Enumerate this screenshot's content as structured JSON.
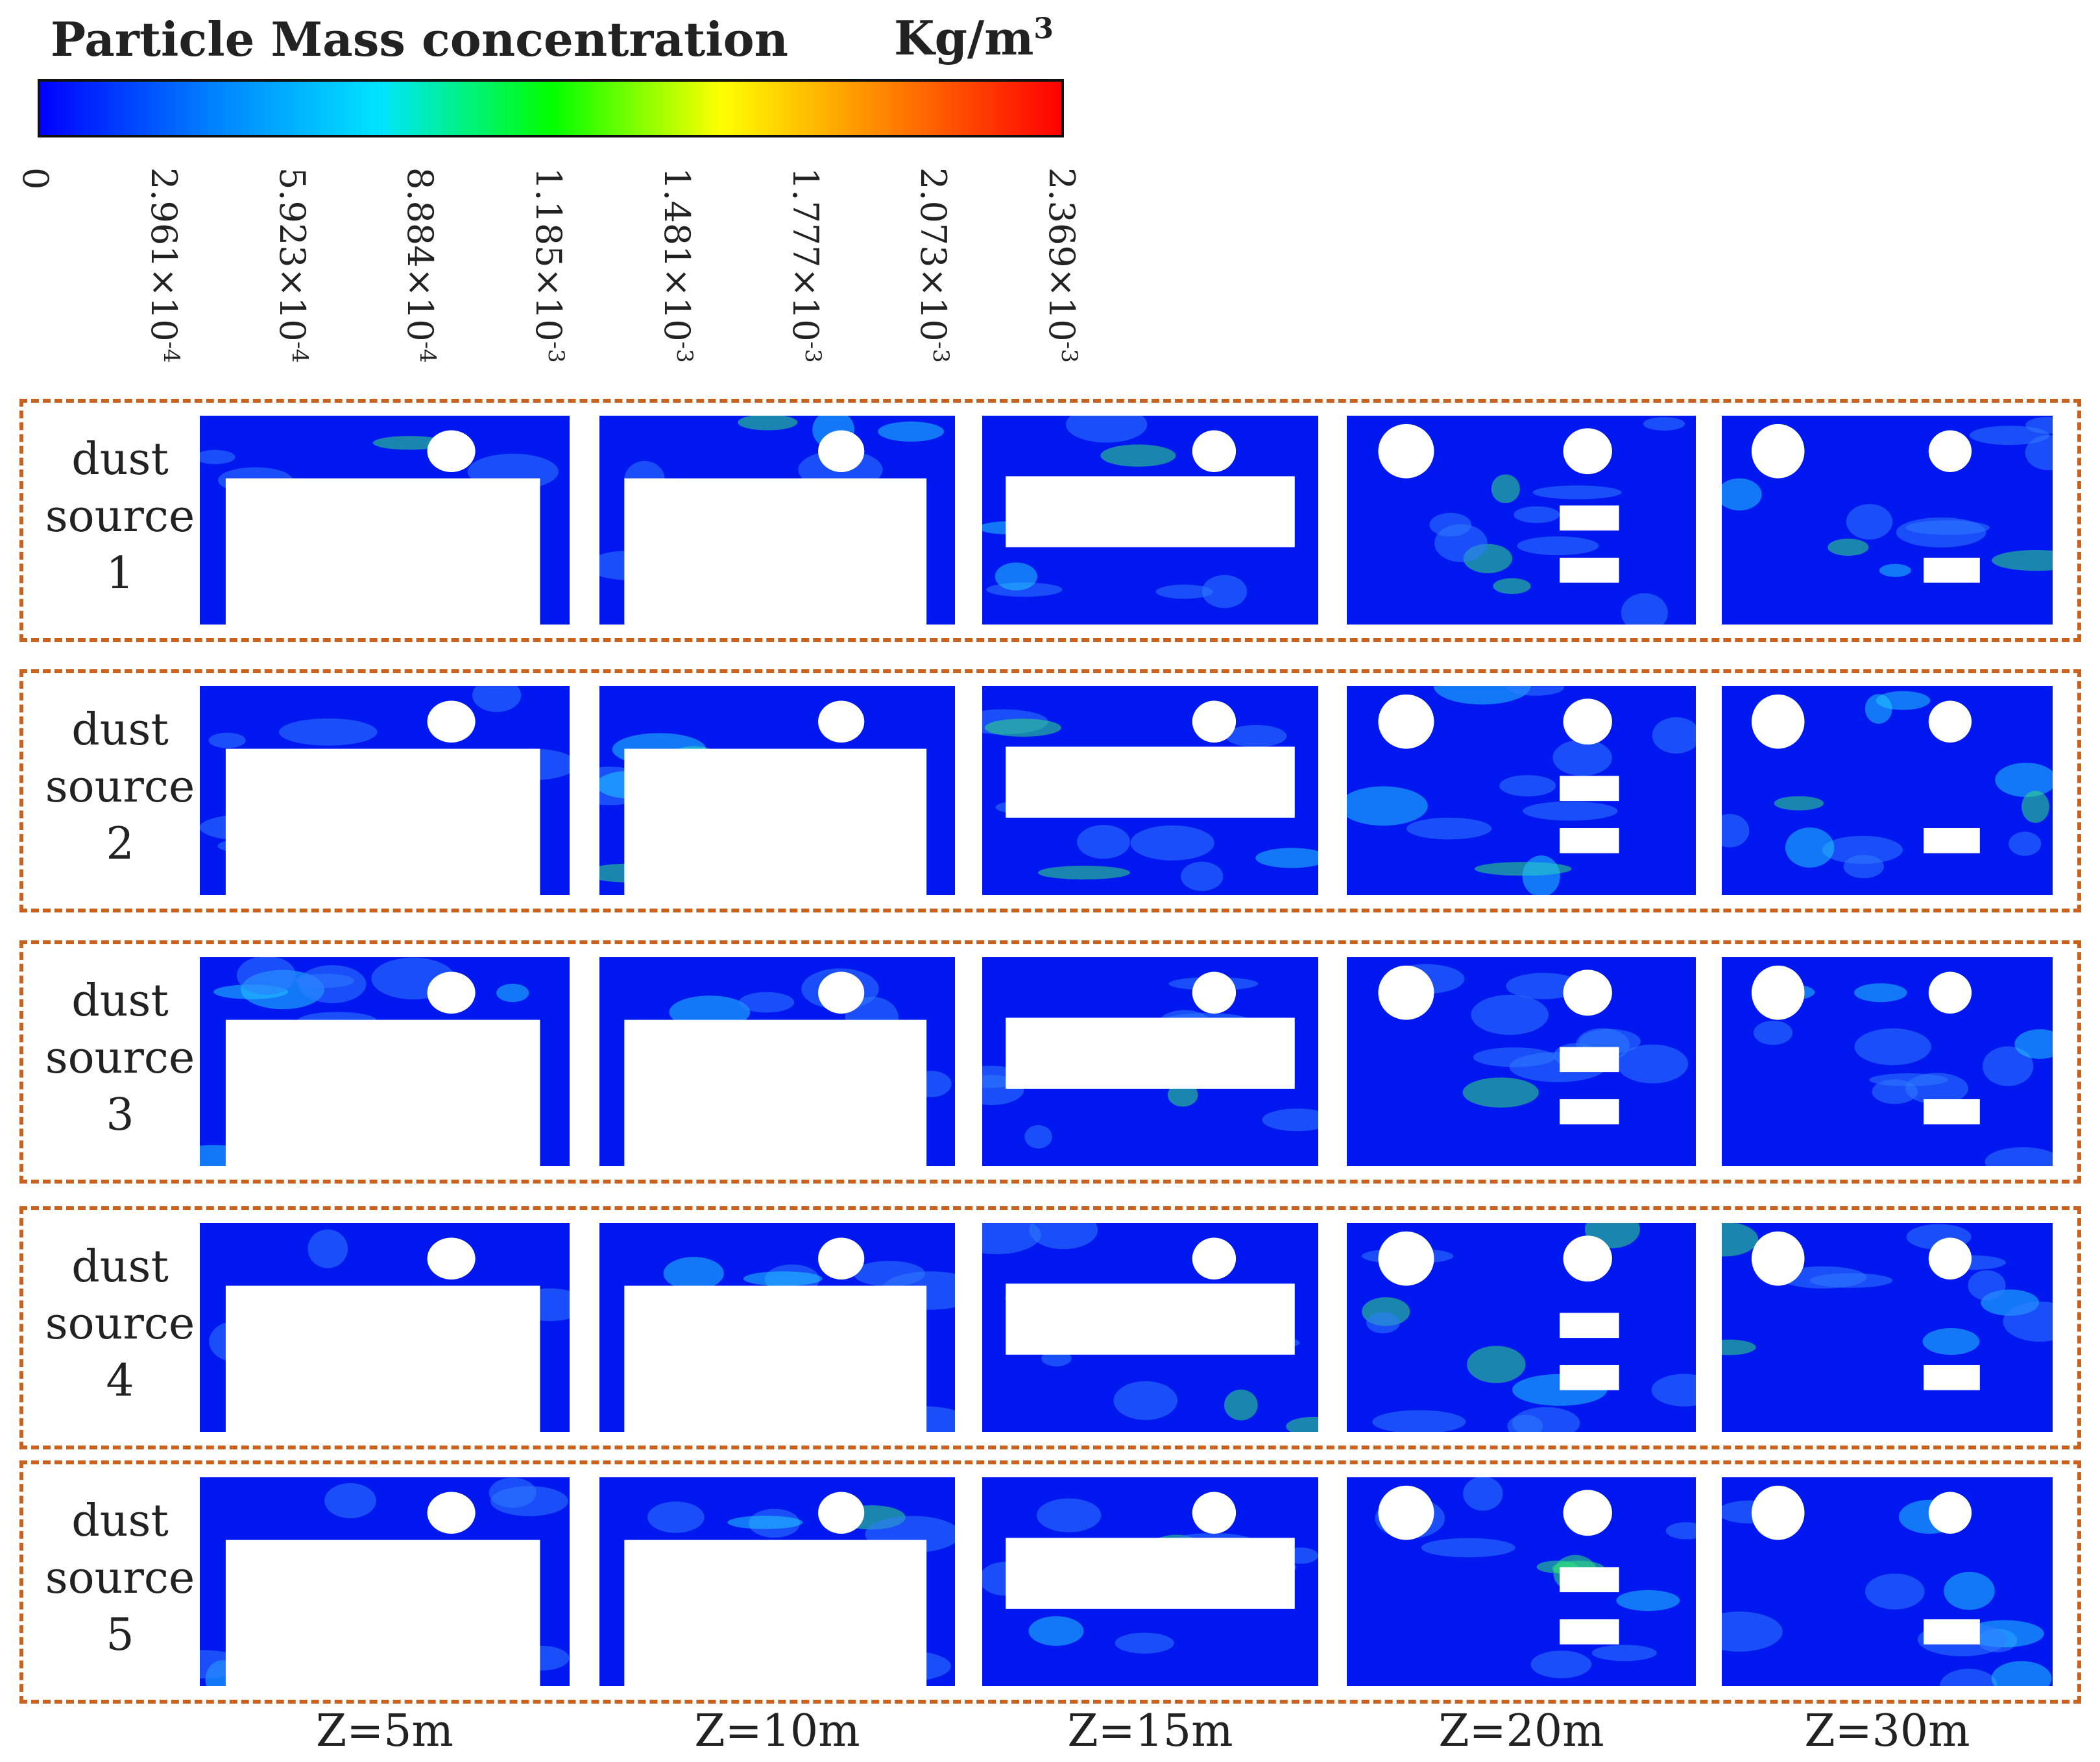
{
  "legend": {
    "title": "Particle Mass concentration",
    "unit_base": "Kg/m",
    "unit_exp": "3",
    "colormap": [
      "#0000ff",
      "#0080ff",
      "#00e5ff",
      "#00ff00",
      "#ffff00",
      "#ff8000",
      "#ff0000"
    ],
    "ticks": [
      {
        "mant": "0",
        "exp": ""
      },
      {
        "mant": "2.961×10",
        "exp": "-4"
      },
      {
        "mant": "5.923×10",
        "exp": "-4"
      },
      {
        "mant": "8.884×10",
        "exp": "-4"
      },
      {
        "mant": "1.185×10",
        "exp": "-3"
      },
      {
        "mant": "1.481×10",
        "exp": "-3"
      },
      {
        "mant": "1.777×10",
        "exp": "-3"
      },
      {
        "mant": "2.073×10",
        "exp": "-3"
      },
      {
        "mant": "2.369×10",
        "exp": "-3"
      }
    ]
  },
  "rows": [
    {
      "l1": "dust",
      "l2": "source",
      "l3": "1"
    },
    {
      "l1": "dust",
      "l2": "source",
      "l3": "2"
    },
    {
      "l1": "dust",
      "l2": "source",
      "l3": "3"
    },
    {
      "l1": "dust",
      "l2": "source",
      "l3": "4"
    },
    {
      "l1": "dust",
      "l2": "source",
      "l3": "5"
    }
  ],
  "columns": [
    "Z=5m",
    "Z=10m",
    "Z=15m",
    "Z=20m",
    "Z=30m"
  ],
  "colors": {
    "field": "#0018f0",
    "obstacle": "#ffffff",
    "frame": "#c8621e"
  }
}
